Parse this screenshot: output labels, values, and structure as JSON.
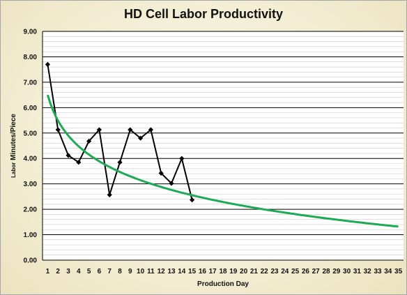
{
  "chart_data": {
    "type": "line",
    "title": "HD Cell Labor Productivity",
    "xlabel": "Production Day",
    "ylabel_small": "Labor",
    "ylabel": "Minutes/Piece",
    "ylim": [
      0,
      9
    ],
    "y_ticks": [
      "0.00",
      "1.00",
      "2.00",
      "3.00",
      "4.00",
      "5.00",
      "6.00",
      "7.00",
      "8.00",
      "9.00"
    ],
    "x_ticks": [
      "1",
      "2",
      "3",
      "4",
      "5",
      "6",
      "7",
      "8",
      "9",
      "10",
      "11",
      "12",
      "13",
      "14",
      "15",
      "16",
      "17",
      "18",
      "19",
      "20",
      "21",
      "22",
      "23",
      "24",
      "25",
      "26",
      "27",
      "28",
      "29",
      "30",
      "31",
      "32",
      "33",
      "34",
      "35"
    ],
    "grid": true,
    "series": [
      {
        "type": "line",
        "marker": "diamond",
        "color": "#000000",
        "x": [
          1,
          2,
          3,
          4,
          5,
          6,
          7,
          8,
          9,
          10,
          11,
          12,
          13,
          14,
          15
        ],
        "values": [
          7.7,
          5.13,
          4.12,
          3.85,
          4.68,
          5.13,
          2.57,
          3.85,
          5.13,
          4.8,
          5.13,
          3.42,
          3.02,
          4.0,
          2.37
        ]
      },
      {
        "type": "trendline",
        "color": "#1eaa55",
        "x": [
          1,
          2,
          3,
          4,
          5,
          6,
          8,
          10,
          12,
          15,
          20,
          25,
          30,
          35
        ],
        "values": [
          6.5,
          5.49,
          4.9,
          4.48,
          4.16,
          3.89,
          3.48,
          3.16,
          2.89,
          2.57,
          2.15,
          1.83,
          1.57,
          1.34
        ]
      }
    ]
  }
}
